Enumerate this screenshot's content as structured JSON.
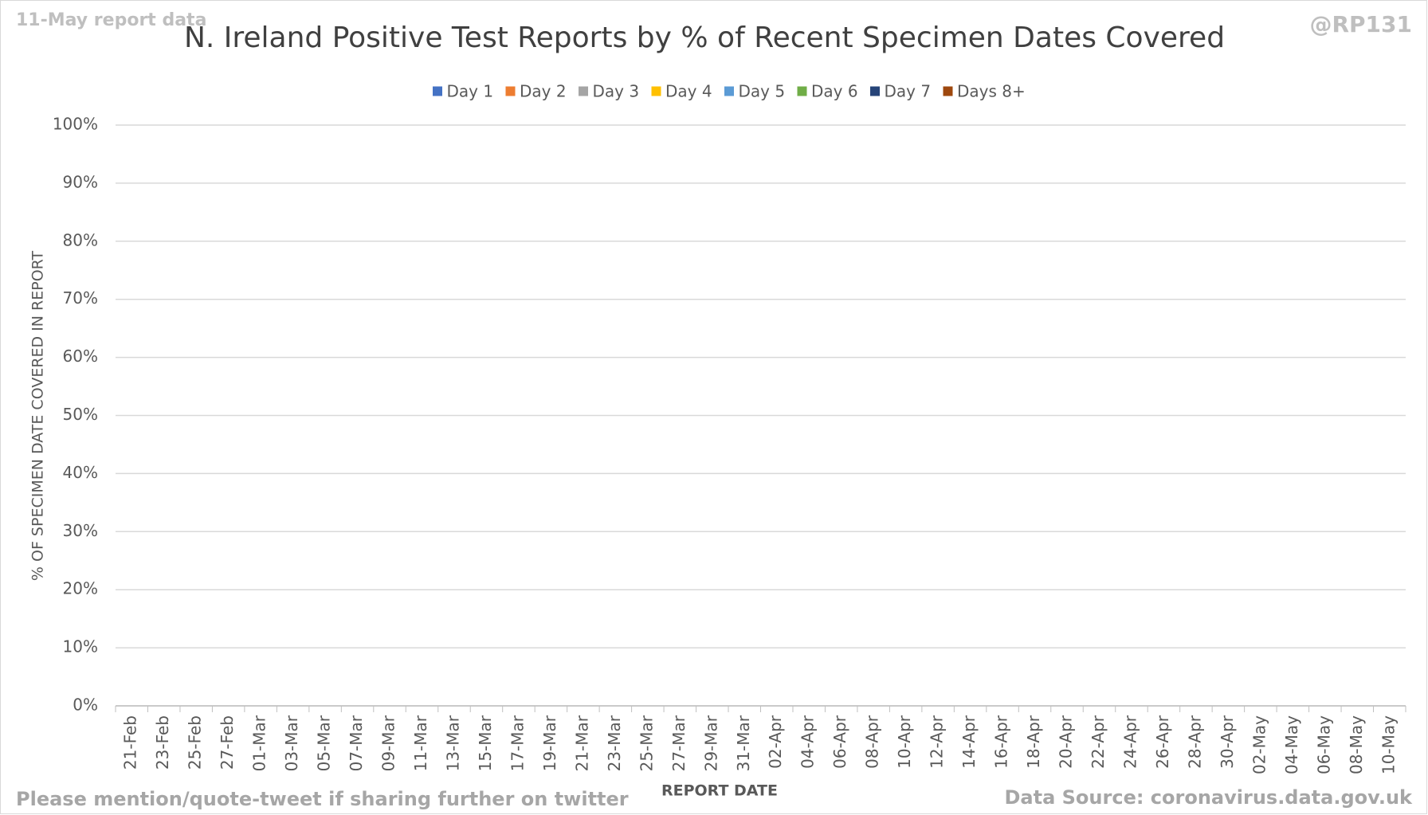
{
  "chart_data": {
    "type": "bar",
    "stacked": true,
    "title": "N. Ireland Positive Test Reports by % of Recent Specimen Dates Covered",
    "corner_left": "11-May report data",
    "corner_right": "@RP131",
    "footer_left": "Please mention/quote-tweet if sharing further on twitter",
    "footer_right": "Data Source: coronavirus.data.gov.uk",
    "x_label": "REPORT DATE",
    "y_label": "% OF SPECIMEN DATE COVERED IN REPORT",
    "categories": [
      "21-Feb",
      "23-Feb",
      "25-Feb",
      "27-Feb",
      "01-Mar",
      "03-Mar",
      "05-Mar",
      "07-Mar",
      "09-Mar",
      "11-Mar",
      "13-Mar",
      "15-Mar",
      "17-Mar",
      "19-Mar",
      "21-Mar",
      "23-Mar",
      "25-Mar",
      "27-Mar",
      "29-Mar",
      "31-Mar",
      "02-Apr",
      "04-Apr",
      "06-Apr",
      "08-Apr",
      "10-Apr",
      "12-Apr",
      "14-Apr",
      "16-Apr",
      "18-Apr",
      "20-Apr",
      "22-Apr",
      "24-Apr",
      "26-Apr",
      "28-Apr",
      "30-Apr",
      "02-May",
      "04-May",
      "06-May",
      "08-May",
      "10-May"
    ],
    "series": [
      {
        "name": "Day 1",
        "color": "#4472c4",
        "values": [
          null,
          null,
          null,
          null,
          null,
          null,
          null,
          null,
          null,
          null,
          null,
          null,
          null,
          null,
          null,
          null,
          null,
          null,
          null,
          null,
          null,
          null,
          null,
          null,
          null,
          null,
          null,
          null,
          null,
          null,
          null,
          null,
          null,
          null,
          null,
          null,
          null,
          null,
          null,
          null
        ]
      },
      {
        "name": "Day 2",
        "color": "#ed7d31",
        "values": [
          null,
          null,
          null,
          null,
          null,
          null,
          null,
          null,
          null,
          null,
          null,
          null,
          null,
          null,
          null,
          null,
          null,
          null,
          null,
          null,
          null,
          null,
          null,
          null,
          null,
          null,
          null,
          null,
          null,
          null,
          null,
          null,
          null,
          null,
          null,
          null,
          null,
          null,
          null,
          null
        ]
      },
      {
        "name": "Day 3",
        "color": "#a5a5a5",
        "values": [
          null,
          null,
          null,
          null,
          null,
          null,
          null,
          null,
          null,
          null,
          null,
          null,
          null,
          null,
          null,
          null,
          null,
          null,
          null,
          null,
          null,
          null,
          null,
          null,
          null,
          null,
          null,
          null,
          null,
          null,
          null,
          null,
          null,
          null,
          null,
          null,
          null,
          null,
          null,
          null
        ]
      },
      {
        "name": "Day 4",
        "color": "#ffc000",
        "values": [
          null,
          null,
          null,
          null,
          null,
          null,
          null,
          null,
          null,
          null,
          null,
          null,
          null,
          null,
          null,
          null,
          null,
          null,
          null,
          null,
          null,
          null,
          null,
          null,
          null,
          null,
          null,
          null,
          null,
          null,
          null,
          null,
          null,
          null,
          null,
          null,
          null,
          null,
          null,
          null
        ]
      },
      {
        "name": "Day 5",
        "color": "#5b9bd5",
        "values": [
          null,
          null,
          null,
          null,
          null,
          null,
          null,
          null,
          null,
          null,
          null,
          null,
          null,
          null,
          null,
          null,
          null,
          null,
          null,
          null,
          null,
          null,
          null,
          null,
          null,
          null,
          null,
          null,
          null,
          null,
          null,
          null,
          null,
          null,
          null,
          null,
          null,
          null,
          null,
          null
        ]
      },
      {
        "name": "Day 6",
        "color": "#70ad47",
        "values": [
          null,
          null,
          null,
          null,
          null,
          null,
          null,
          null,
          null,
          null,
          null,
          null,
          null,
          null,
          null,
          null,
          null,
          null,
          null,
          null,
          null,
          null,
          null,
          null,
          null,
          null,
          null,
          null,
          null,
          null,
          null,
          null,
          null,
          null,
          null,
          null,
          null,
          null,
          null,
          null
        ]
      },
      {
        "name": "Day 7",
        "color": "#264478",
        "values": [
          null,
          null,
          null,
          null,
          null,
          null,
          null,
          null,
          null,
          null,
          null,
          null,
          null,
          null,
          null,
          null,
          null,
          null,
          null,
          null,
          null,
          null,
          null,
          null,
          null,
          null,
          null,
          null,
          null,
          null,
          null,
          null,
          null,
          null,
          null,
          null,
          null,
          null,
          null,
          null
        ]
      },
      {
        "name": "Days 8+",
        "color": "#9e480e",
        "values": [
          null,
          null,
          null,
          null,
          null,
          null,
          null,
          null,
          null,
          null,
          null,
          null,
          null,
          null,
          null,
          null,
          null,
          null,
          null,
          null,
          null,
          null,
          null,
          null,
          null,
          null,
          null,
          null,
          null,
          null,
          null,
          null,
          null,
          null,
          null,
          null,
          null,
          null,
          null,
          null
        ]
      }
    ],
    "ylim": [
      0,
      100
    ],
    "yticks": [
      {
        "value": 0,
        "label": "0%"
      },
      {
        "value": 10,
        "label": "10%"
      },
      {
        "value": 20,
        "label": "20%"
      },
      {
        "value": 30,
        "label": "30%"
      },
      {
        "value": 40,
        "label": "40%"
      },
      {
        "value": 50,
        "label": "50%"
      },
      {
        "value": 60,
        "label": "60%"
      },
      {
        "value": 70,
        "label": "70%"
      },
      {
        "value": 80,
        "label": "80%"
      },
      {
        "value": 90,
        "label": "90%"
      },
      {
        "value": 100,
        "label": "100%"
      }
    ],
    "grid": true,
    "legend": "top"
  }
}
